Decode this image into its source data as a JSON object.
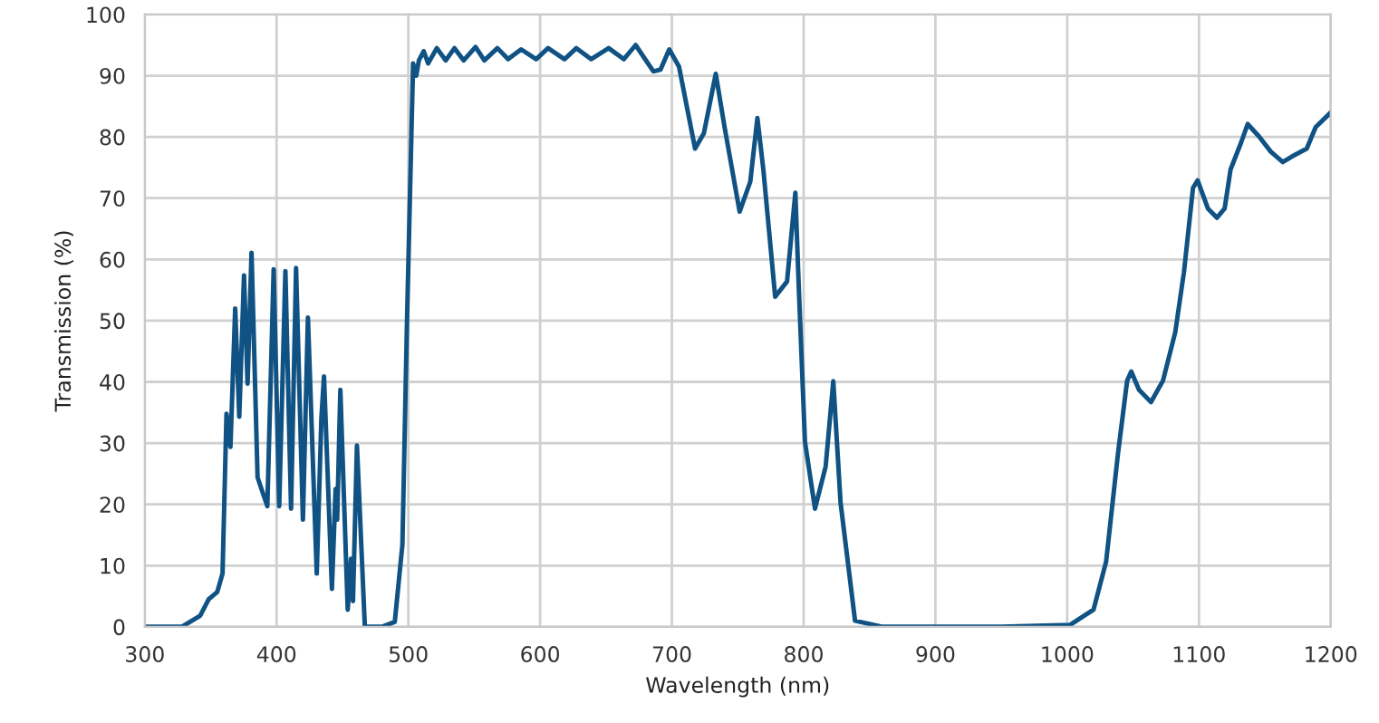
{
  "chart_data": {
    "type": "line",
    "xlabel": "Wavelength (nm)",
    "ylabel": "Transmission (%)",
    "xlim": [
      300,
      1200
    ],
    "ylim": [
      0,
      100
    ],
    "xticks": [
      300,
      400,
      500,
      600,
      700,
      800,
      900,
      1000,
      1100,
      1200
    ],
    "yticks": [
      0,
      10,
      20,
      30,
      40,
      50,
      60,
      70,
      80,
      90,
      100
    ],
    "grid": true,
    "marker": "none",
    "line_style": "solid",
    "series": [
      {
        "color": "#0f5283",
        "x": [
          300,
          328,
          342,
          348.5,
          355,
          359,
          362,
          365,
          368.6,
          371.7,
          375.3,
          378,
          381,
          385.6,
          393,
          397.8,
          402,
          406.7,
          411,
          414.8,
          420,
          423.8,
          430.5,
          434,
          436,
          442,
          444.8,
          446,
          448.4,
          454,
          456.5,
          458,
          461,
          467,
          480,
          489.7,
          495.5,
          499,
          503.6,
          506,
          508,
          511.7,
          515,
          521.6,
          528.4,
          535,
          542,
          551,
          557.7,
          567.6,
          575.7,
          585.6,
          597,
          606,
          618.5,
          627.5,
          638.7,
          652,
          663.5,
          672.5,
          686,
          691.4,
          698,
          705.4,
          717.6,
          724.3,
          733.3,
          740,
          751.4,
          759.5,
          764.9,
          769.4,
          778.4,
          787.4,
          793.7,
          796.4,
          801,
          808.6,
          816.7,
          822.5,
          828,
          839,
          860,
          900,
          950,
          1002,
          1020,
          1029.5,
          1038.6,
          1045.5,
          1048.6,
          1054.5,
          1063.6,
          1072.7,
          1082,
          1088.6,
          1095.5,
          1099,
          1106.8,
          1113.6,
          1119.5,
          1124,
          1132,
          1137,
          1145.5,
          1154.5,
          1163.6,
          1170.5,
          1181.8,
          1188.6,
          1198.6,
          1200
        ],
        "values": [
          0,
          0,
          1.8,
          4.5,
          5.7,
          8.7,
          34.8,
          29.4,
          52,
          34.3,
          57.4,
          39.7,
          61.1,
          24.4,
          19.7,
          58.4,
          19.7,
          58.1,
          19.3,
          58.6,
          17.5,
          50.5,
          8.7,
          34,
          40.9,
          6.2,
          22.5,
          17.5,
          38.7,
          2.8,
          11.1,
          4.2,
          29.6,
          0,
          0,
          0.8,
          13.4,
          50,
          92,
          90,
          92.5,
          94,
          92,
          94.5,
          92.5,
          94.5,
          92.5,
          94.7,
          92.5,
          94.5,
          92.7,
          94.3,
          92.7,
          94.5,
          92.7,
          94.5,
          92.7,
          94.5,
          92.7,
          95,
          90.7,
          91,
          94.3,
          91.5,
          78.1,
          80.6,
          90.3,
          81.6,
          67.8,
          72.7,
          83.1,
          74.7,
          53.9,
          56.4,
          70.9,
          54.9,
          30.2,
          19.3,
          26.2,
          40.1,
          20.3,
          1,
          0,
          0,
          0,
          0.3,
          2.8,
          10.6,
          28.4,
          40.2,
          41.7,
          38.7,
          36.7,
          40.2,
          48.1,
          57.9,
          71.7,
          72.9,
          68.3,
          66.8,
          68.3,
          74.7,
          79.1,
          82.1,
          80.1,
          77.6,
          75.9,
          76.8,
          78.1,
          81.6,
          83.7,
          84
        ]
      }
    ]
  }
}
